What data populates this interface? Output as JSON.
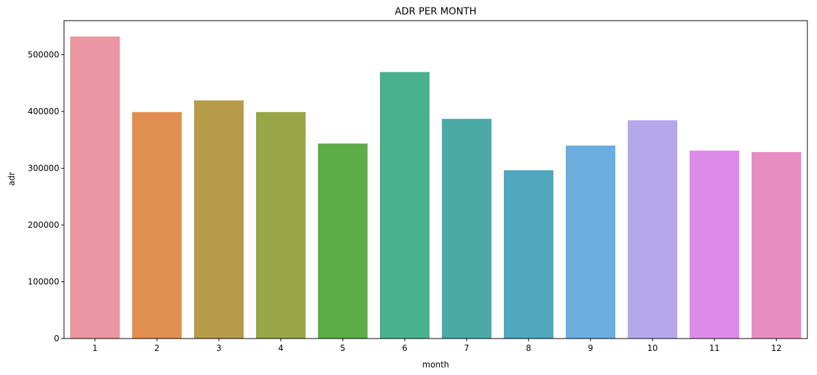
{
  "chart_data": {
    "type": "bar",
    "title": "ADR PER MONTH",
    "xlabel": "month",
    "ylabel": "adr",
    "categories": [
      "1",
      "2",
      "3",
      "4",
      "5",
      "6",
      "7",
      "8",
      "9",
      "10",
      "11",
      "12"
    ],
    "values": [
      532000,
      399000,
      419500,
      399000,
      343500,
      469500,
      387000,
      296500,
      340000,
      384500,
      331000,
      328500
    ],
    "colors": [
      "#eb96a3",
      "#e08f50",
      "#b69b48",
      "#98a646",
      "#5dac47",
      "#4bb08d",
      "#4ba9a6",
      "#4ea7bc",
      "#6aaddf",
      "#b5a7ea",
      "#dc8be8",
      "#e88dc4"
    ],
    "ylim": [
      0,
      560000
    ],
    "yticks": [
      0,
      100000,
      200000,
      300000,
      400000,
      500000
    ],
    "ytick_labels": [
      "0",
      "100000",
      "200000",
      "300000",
      "400000",
      "500000"
    ],
    "grid": false,
    "legend": "none"
  }
}
